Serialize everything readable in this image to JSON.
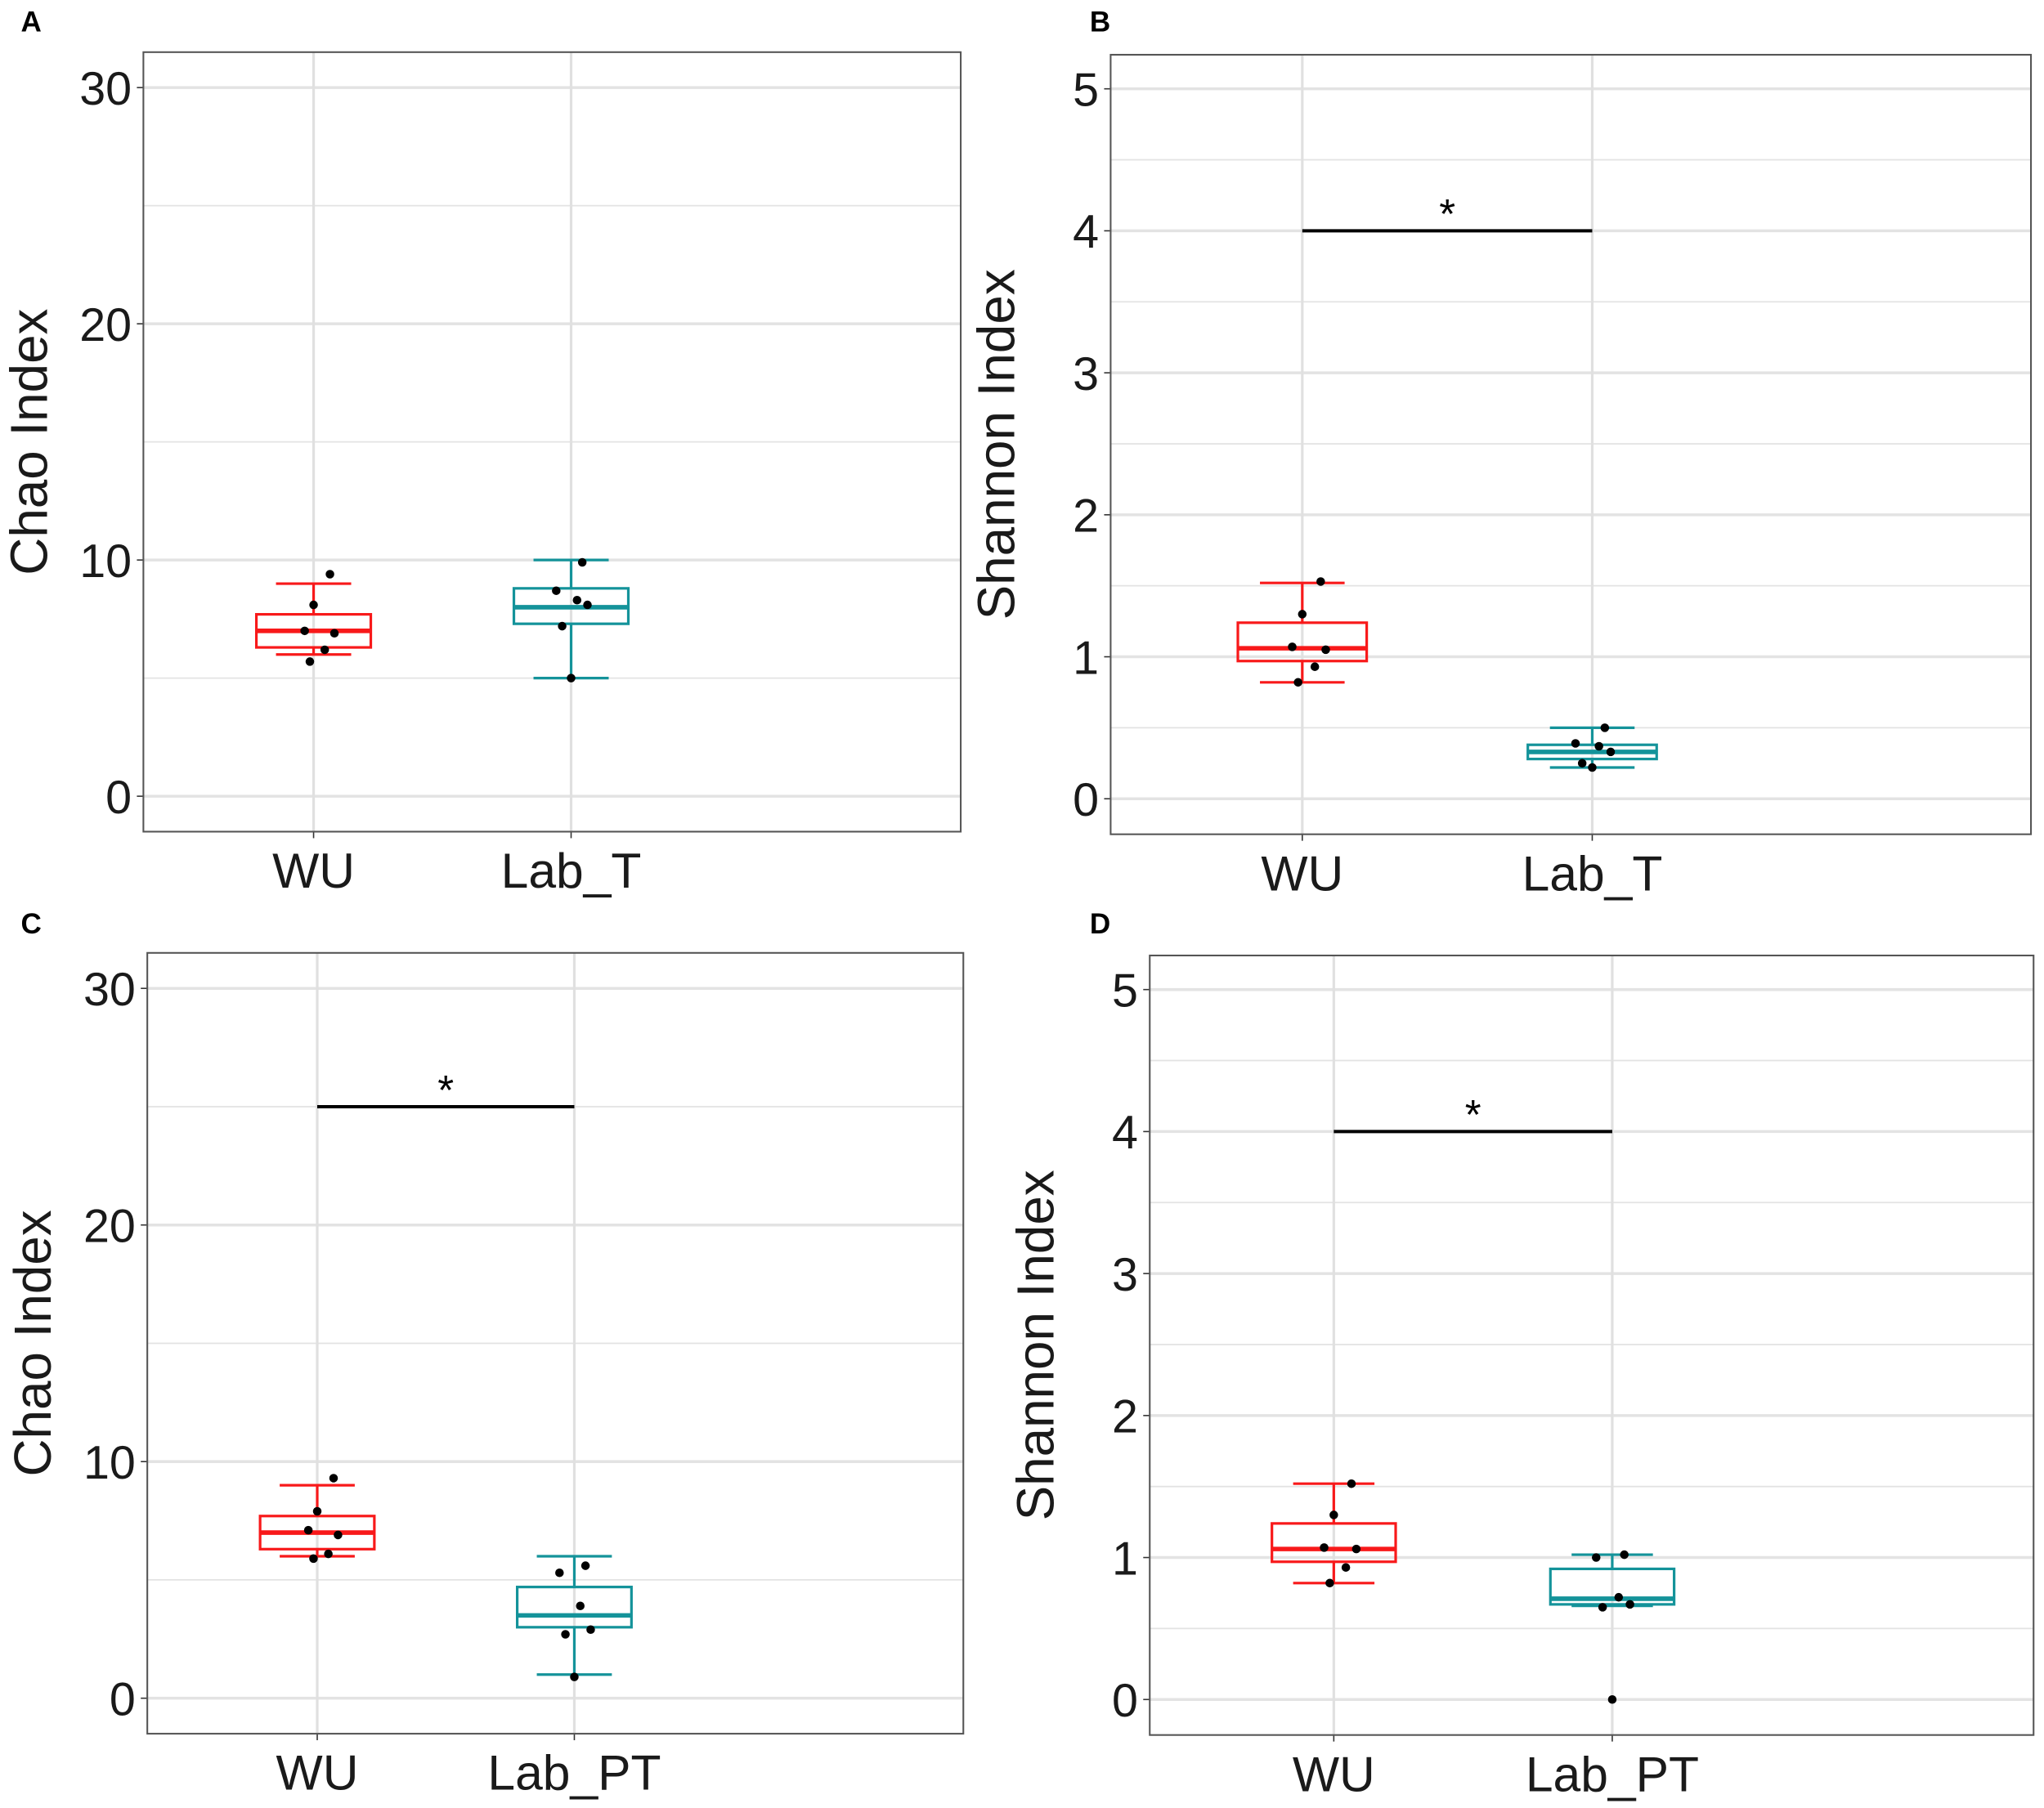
{
  "chart_data": [
    {
      "panel": "A",
      "type": "box",
      "ylabel": "Chao Index",
      "ylim": [
        -1.5,
        31.5
      ],
      "yticks": [
        0,
        10,
        20,
        30
      ],
      "grid": true,
      "categories": [
        "WU",
        "Lab_T"
      ],
      "series": [
        {
          "name": "WU",
          "color": "#F8191A",
          "whisker_low": 6.0,
          "q1": 6.3,
          "median": 7.0,
          "q3": 7.7,
          "whisker_high": 9.0,
          "points": [
            9.4,
            8.1,
            7.0,
            6.9,
            6.2,
            5.7
          ]
        },
        {
          "name": "Lab_T",
          "color": "#14939A",
          "whisker_low": 5.0,
          "q1": 7.3,
          "median": 8.0,
          "q3": 8.8,
          "whisker_high": 10.0,
          "points": [
            9.9,
            8.7,
            8.3,
            8.1,
            7.2,
            5.0
          ]
        }
      ],
      "significance": null
    },
    {
      "panel": "B",
      "type": "box",
      "ylabel": "Shannon Index",
      "ylim": [
        -0.25,
        5.24
      ],
      "yticks": [
        0,
        1,
        2,
        3,
        4,
        5
      ],
      "grid": true,
      "categories": [
        "WU",
        "Lab_T"
      ],
      "series": [
        {
          "name": "WU",
          "color": "#F8191A",
          "whisker_low": 0.82,
          "q1": 0.97,
          "median": 1.06,
          "q3": 1.24,
          "whisker_high": 1.52,
          "points": [
            1.53,
            1.3,
            1.07,
            1.05,
            0.93,
            0.82
          ]
        },
        {
          "name": "Lab_T",
          "color": "#14939A",
          "whisker_low": 0.22,
          "q1": 0.28,
          "median": 0.33,
          "q3": 0.38,
          "whisker_high": 0.5,
          "points": [
            0.5,
            0.39,
            0.37,
            0.33,
            0.25,
            0.22
          ]
        }
      ],
      "significance": {
        "y": 4.0,
        "label": "*"
      }
    },
    {
      "panel": "C",
      "type": "box",
      "ylabel": "Chao Index",
      "ylim": [
        -1.5,
        31.5
      ],
      "yticks": [
        0,
        10,
        20,
        30
      ],
      "grid": true,
      "categories": [
        "WU",
        "Lab_PT"
      ],
      "series": [
        {
          "name": "WU",
          "color": "#F8191A",
          "whisker_low": 6.0,
          "q1": 6.3,
          "median": 7.0,
          "q3": 7.7,
          "whisker_high": 9.0,
          "points": [
            9.3,
            7.9,
            7.1,
            6.9,
            6.1,
            5.9
          ]
        },
        {
          "name": "Lab_PT",
          "color": "#14939A",
          "whisker_low": 1.0,
          "q1": 3.0,
          "median": 3.5,
          "q3": 4.7,
          "whisker_high": 6.0,
          "points": [
            5.6,
            5.3,
            3.9,
            2.9,
            2.7,
            0.9
          ]
        }
      ],
      "significance": {
        "y": 25.0,
        "label": "*"
      }
    },
    {
      "panel": "D",
      "type": "box",
      "ylabel": "Shannon Index",
      "ylim": [
        -0.25,
        5.24
      ],
      "yticks": [
        0,
        1,
        2,
        3,
        4,
        5
      ],
      "grid": true,
      "categories": [
        "WU",
        "Lab_PT"
      ],
      "series": [
        {
          "name": "WU",
          "color": "#F8191A",
          "whisker_low": 0.82,
          "q1": 0.97,
          "median": 1.06,
          "q3": 1.24,
          "whisker_high": 1.52,
          "points": [
            1.52,
            1.3,
            1.07,
            1.06,
            0.93,
            0.82
          ]
        },
        {
          "name": "Lab_PT",
          "color": "#14939A",
          "whisker_low": 0.66,
          "q1": 0.67,
          "median": 0.71,
          "q3": 0.92,
          "whisker_high": 1.02,
          "points": [
            1.02,
            1.0,
            0.72,
            0.67,
            0.65,
            0.0
          ]
        }
      ],
      "significance": {
        "y": 4.0,
        "label": "*"
      }
    }
  ]
}
